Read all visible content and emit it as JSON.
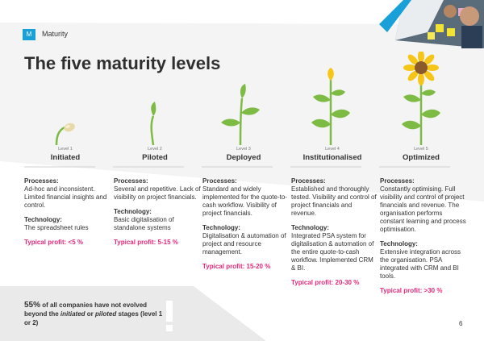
{
  "header": {
    "section_letter": "M",
    "section_label": "Maturity"
  },
  "title": "The five maturity levels",
  "levels": [
    {
      "level": "Level 1",
      "name": "Initiated",
      "processes_label": "Processes:",
      "processes": "Ad-hoc and inconsistent. Limited financial insights and control.",
      "technology_label": "Technology:",
      "technology": "The spreadsheet rules",
      "profit": "Typical profit: <5 %"
    },
    {
      "level": "Level 2",
      "name": "Piloted",
      "processes_label": "Processes:",
      "processes": "Several and repetitive. Lack of visibility on project financials.",
      "technology_label": "Technology:",
      "technology": "Basic digitalisation of standalone systems",
      "profit": "Typical profit: 5-15 %"
    },
    {
      "level": "Level 3",
      "name": "Deployed",
      "processes_label": "Processes:",
      "processes": "Standard and widely implemented for the quote-to-cash workflow. Visibility of project financials.",
      "technology_label": "Technology:",
      "technology": "Digitalisation & automation of project and resource management.",
      "profit": "Typical profit: 15-20 %"
    },
    {
      "level": "Level 4",
      "name": "Institutionalised",
      "processes_label": "Processes:",
      "processes": "Established and thoroughly tested. Visibility and control of project financials and revenue.",
      "technology_label": "Technology:",
      "technology": "Integrated PSA system for digitalisation & automation of the entire quote-to-cash workflow. Implemented CRM & BI.",
      "profit": "Typical profit: 20-30 %"
    },
    {
      "level": "Level 5",
      "name": "Optimized",
      "processes_label": "Processes:",
      "processes": "Constantly optimising. Full visibility and control of project financials and revenue. The organisation performs constant learning and process optimisation.",
      "technology_label": "Technology:",
      "technology": "Extensive integration across the organisation. PSA integrated with CRM and BI tools.",
      "profit": "Typical profit: >30 %"
    }
  ],
  "stat": {
    "percent": "55%",
    "text_a": " of all companies have not evolved beyond the ",
    "initiated": "initiated",
    "text_b": " or ",
    "piloted": "piloted",
    "text_c": " stages (level 1 or 2)"
  },
  "page_number": "6",
  "colors": {
    "accent": "#1aa0d8",
    "profit": "#e8287a",
    "leaf": "#7dbb45",
    "petal": "#f5c518"
  }
}
